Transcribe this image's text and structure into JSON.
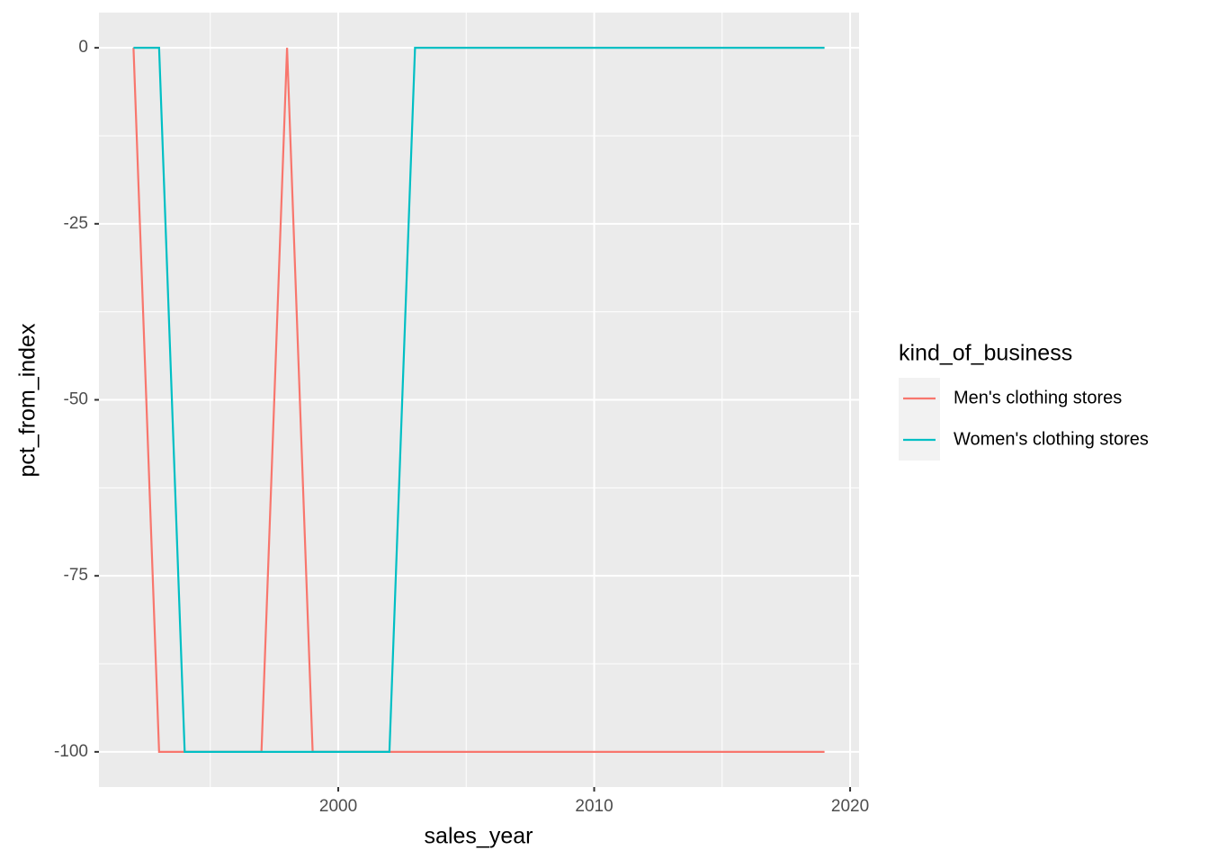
{
  "chart_data": {
    "type": "line",
    "x_label": "sales_year",
    "y_label": "pct_from_index",
    "legend_title": "kind_of_business",
    "legend_position": "right",
    "x": [
      1992,
      1993,
      1994,
      1995,
      1996,
      1997,
      1998,
      1999,
      2000,
      2001,
      2002,
      2003,
      2004,
      2005,
      2006,
      2007,
      2008,
      2009,
      2010,
      2011,
      2012,
      2013,
      2014,
      2015,
      2016,
      2017,
      2018,
      2019
    ],
    "series": [
      {
        "name": "Men's clothing stores",
        "color": "#F8766D",
        "values": [
          0,
          -100,
          -100,
          -100,
          -100,
          -100,
          0,
          -100,
          -100,
          -100,
          -100,
          -100,
          -100,
          -100,
          -100,
          -100,
          -100,
          -100,
          -100,
          -100,
          -100,
          -100,
          -100,
          -100,
          -100,
          -100,
          -100,
          -100
        ]
      },
      {
        "name": "Women's clothing stores",
        "color": "#00BFC4",
        "values": [
          0,
          0,
          -100,
          -100,
          -100,
          -100,
          -100,
          -100,
          -100,
          -100,
          -100,
          0,
          0,
          0,
          0,
          0,
          0,
          0,
          0,
          0,
          0,
          0,
          0,
          0,
          0,
          0,
          0,
          0
        ]
      }
    ],
    "xlim": [
      1990.65,
      2020.35
    ],
    "xticks": [
      2000,
      2010,
      2020
    ],
    "ylim": [
      -105,
      5
    ],
    "yticks": [
      -100,
      -75,
      -50,
      -25,
      0
    ],
    "grid": true
  }
}
